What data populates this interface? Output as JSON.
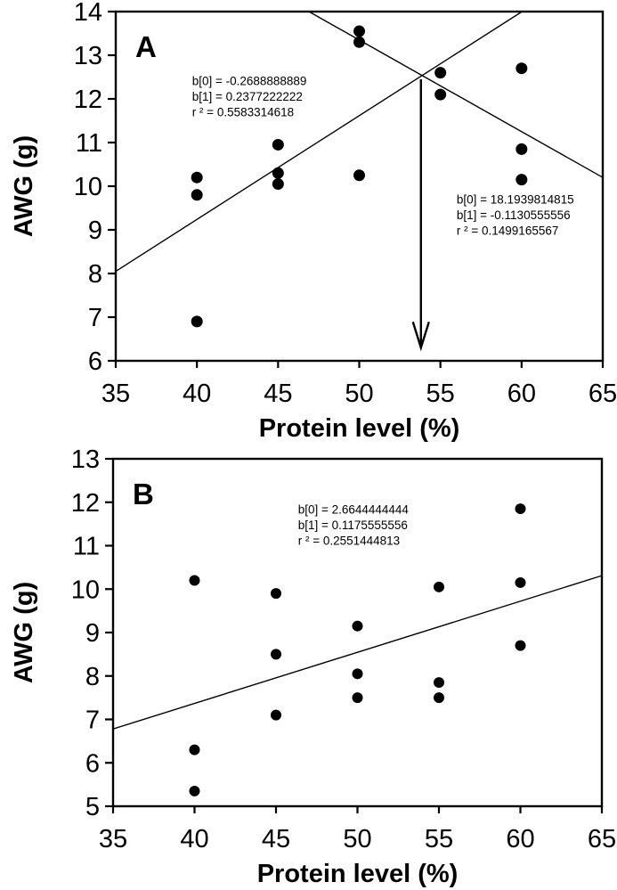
{
  "figure": {
    "background": "#ffffff",
    "ink_color": "#000000",
    "marker": "filled-circle"
  },
  "chart_data": [
    {
      "type": "scatter",
      "panel_label": "A",
      "xlabel": "Protein level (%)",
      "ylabel": "AWG (g)",
      "xlim": [
        35,
        65
      ],
      "ylim": [
        6,
        14
      ],
      "xticks": [
        35,
        40,
        45,
        50,
        55,
        60,
        65
      ],
      "yticks": [
        6,
        7,
        8,
        9,
        10,
        11,
        12,
        13,
        14
      ],
      "grid": false,
      "legend": "none",
      "points": [
        [
          40,
          10.2
        ],
        [
          40,
          9.8
        ],
        [
          40,
          6.9
        ],
        [
          45,
          10.95
        ],
        [
          45,
          10.3
        ],
        [
          45,
          10.05
        ],
        [
          50,
          13.55
        ],
        [
          50,
          13.3
        ],
        [
          50,
          10.25
        ],
        [
          55,
          12.6
        ],
        [
          55,
          12.1
        ],
        [
          60,
          12.7
        ],
        [
          60,
          10.85
        ],
        [
          60,
          10.15
        ]
      ],
      "regression_lines": [
        {
          "name": "positive-regression-line",
          "b0": -0.2688888889,
          "b1": 0.2377222222,
          "r2": 0.5583314618,
          "draw_from": [
            35,
            8.05
          ],
          "draw_to": [
            60.03,
            14.0
          ]
        },
        {
          "name": "negative-regression-line",
          "b0": 18.1939814815,
          "b1": -0.1130555556,
          "r2": 0.1499165567,
          "draw_from": [
            46.9,
            14.0
          ],
          "draw_to": [
            65,
            10.2
          ]
        }
      ],
      "annotations": [
        {
          "name": "positive-fit-stats",
          "x": 39.7,
          "y": 12.57,
          "lines": [
            "b[0] = -0.2688888889",
            "b[1] = 0.2377222222",
            "r ² = 0.5583314618"
          ]
        },
        {
          "name": "negative-fit-stats",
          "x": 56.0,
          "y": 9.86,
          "lines": [
            "b[0] = 18.1939814815",
            "b[1] = -0.1130555556",
            "r ² = 0.1499165567"
          ]
        }
      ],
      "arrow": {
        "x": 53.8,
        "y_start": 12.45,
        "y_end": 6.3
      }
    },
    {
      "type": "scatter",
      "panel_label": "B",
      "xlabel": "Protein level (%)",
      "ylabel": "AWG (g)",
      "xlim": [
        35,
        65
      ],
      "ylim": [
        5,
        13
      ],
      "xticks": [
        35,
        40,
        45,
        50,
        55,
        60,
        65
      ],
      "yticks": [
        5,
        6,
        7,
        8,
        9,
        10,
        11,
        12,
        13
      ],
      "grid": false,
      "legend": "none",
      "points": [
        [
          40,
          10.2
        ],
        [
          40,
          6.3
        ],
        [
          40,
          5.35
        ],
        [
          45,
          9.9
        ],
        [
          45,
          8.5
        ],
        [
          45,
          7.1
        ],
        [
          50,
          9.15
        ],
        [
          50,
          8.05
        ],
        [
          50,
          7.5
        ],
        [
          55,
          10.05
        ],
        [
          55,
          7.85
        ],
        [
          55,
          7.5
        ],
        [
          60,
          11.85
        ],
        [
          60,
          10.15
        ],
        [
          60,
          8.7
        ]
      ],
      "regression_lines": [
        {
          "name": "positive-regression-line",
          "b0": 2.6644444444,
          "b1": 0.1175555556,
          "r2": 0.2551444813,
          "draw_from": [
            35,
            6.78
          ],
          "draw_to": [
            65,
            10.31
          ]
        }
      ],
      "annotations": [
        {
          "name": "fit-stats",
          "x": 46.35,
          "y": 12.0,
          "lines": [
            "b[0] = 2.6644444444",
            "b[1] = 0.1175555556",
            "r ² = 0.2551444813"
          ]
        }
      ],
      "arrow": null
    }
  ]
}
